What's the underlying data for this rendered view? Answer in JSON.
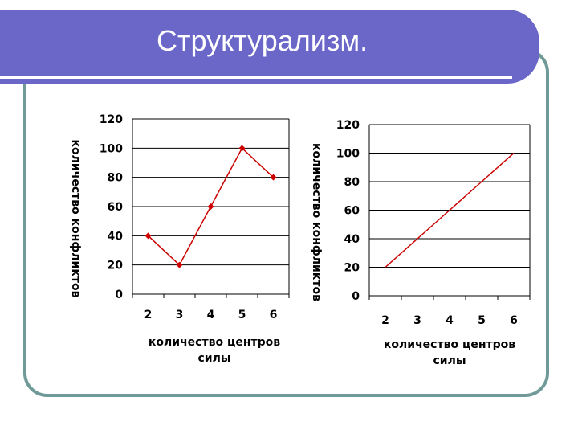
{
  "slide": {
    "title": "Структурализм."
  },
  "colors": {
    "title_bar": "#6b67c9",
    "frame_border": "#6f9a97",
    "series": "#cc0000"
  },
  "chart_data": [
    {
      "type": "line",
      "categories": [
        "2",
        "3",
        "4",
        "5",
        "6"
      ],
      "series": [
        {
          "values": [
            40,
            20,
            60,
            100,
            80
          ],
          "markers": "diamond"
        }
      ],
      "xlabel": [
        "количество центров",
        "силы"
      ],
      "ylabel": "количество конфликтов",
      "yticks": [
        "0",
        "20",
        "40",
        "60",
        "80",
        "100",
        "120"
      ],
      "ylim": [
        0,
        120
      ],
      "grid": "horizontal"
    },
    {
      "type": "line",
      "categories": [
        "2",
        "3",
        "4",
        "5",
        "6"
      ],
      "series": [
        {
          "values": [
            20,
            40,
            60,
            80,
            100
          ],
          "markers": "none"
        }
      ],
      "xlabel": [
        "количество центров",
        "силы"
      ],
      "ylabel": "количество конфликтов",
      "yticks": [
        "0",
        "20",
        "40",
        "60",
        "80",
        "100",
        "120"
      ],
      "ylim": [
        0,
        120
      ],
      "grid": "horizontal"
    }
  ]
}
